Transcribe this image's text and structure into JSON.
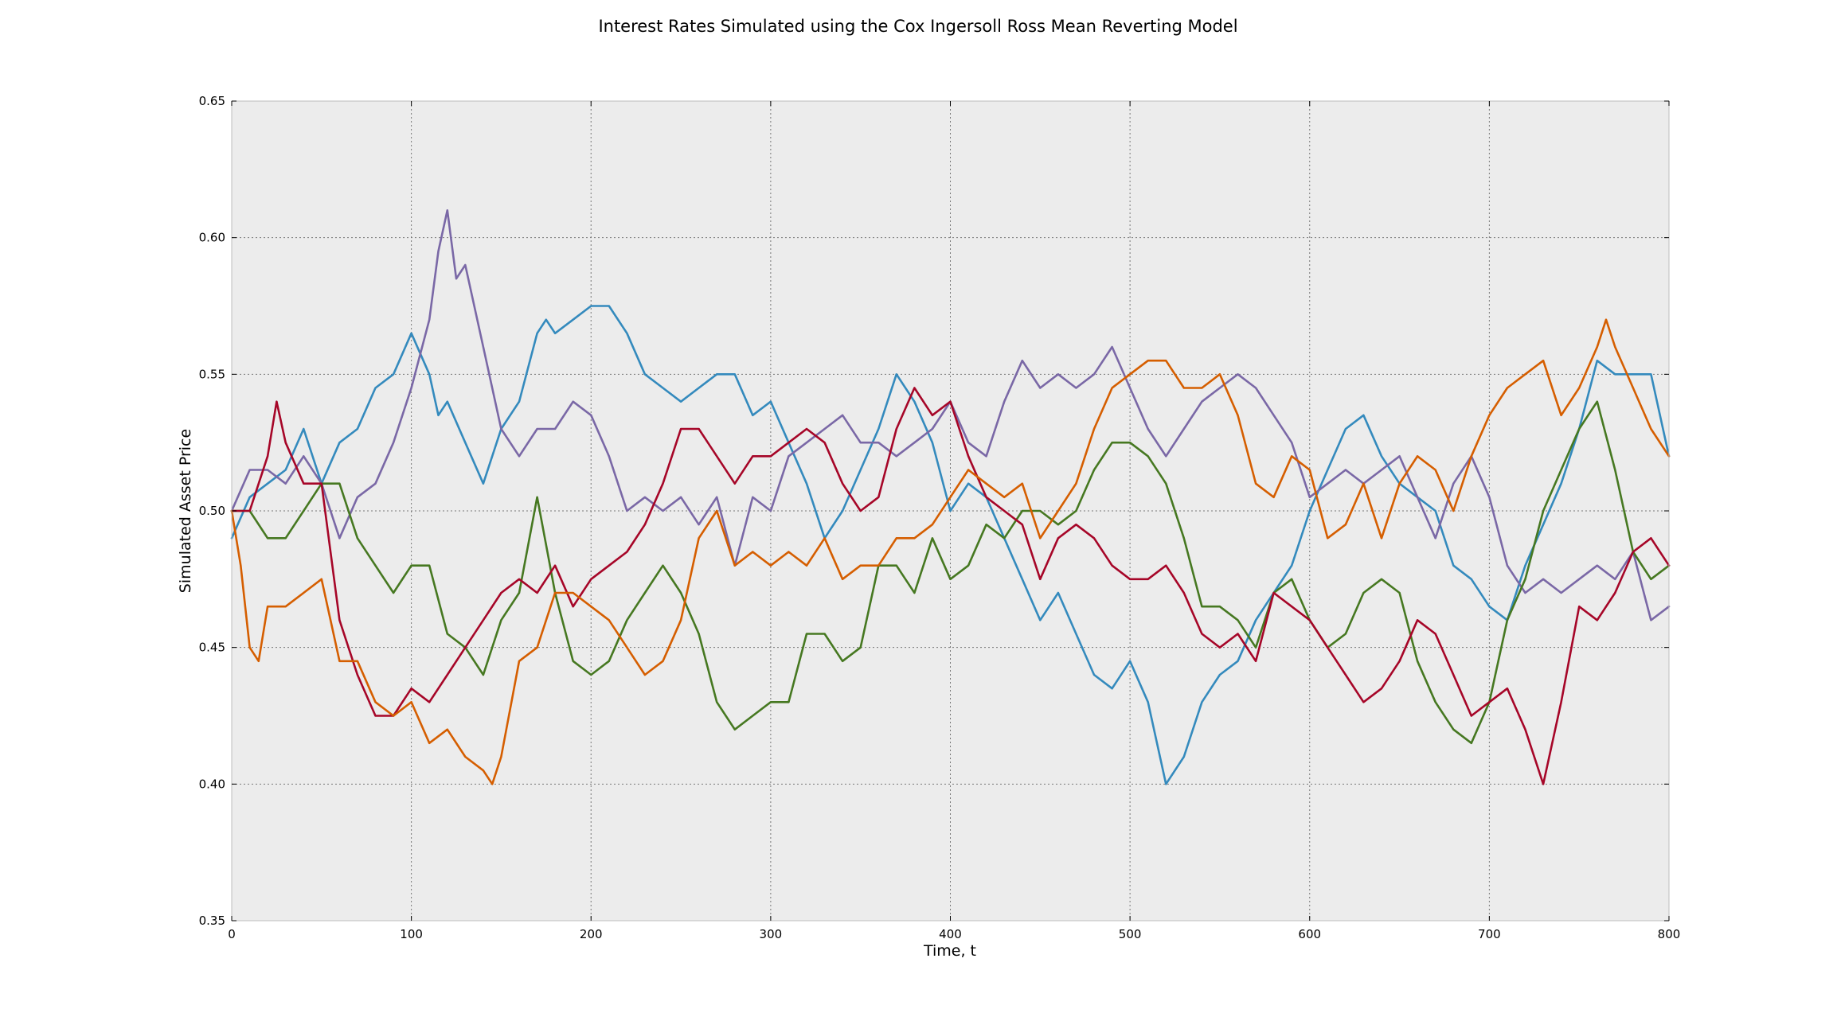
{
  "chart_data": {
    "type": "line",
    "title": "Interest Rates Simulated using the Cox Ingersoll Ross Mean Reverting Model",
    "xlabel": "Time, t",
    "ylabel": "Simulated Asset Price",
    "xlim": [
      0,
      800
    ],
    "ylim": [
      0.35,
      0.65
    ],
    "xticks": [
      0,
      100,
      200,
      300,
      400,
      500,
      600,
      700,
      800
    ],
    "yticks": [
      0.35,
      0.4,
      0.45,
      0.5,
      0.55,
      0.6,
      0.65
    ],
    "xtick_labels": [
      "0",
      "100",
      "200",
      "300",
      "400",
      "500",
      "600",
      "700",
      "800"
    ],
    "ytick_labels": [
      "0.35",
      "0.40",
      "0.45",
      "0.50",
      "0.55",
      "0.60",
      "0.65"
    ],
    "grid": true,
    "legend": false,
    "background": "#ececec",
    "series": [
      {
        "color": "#348abd",
        "x": [
          0,
          10,
          20,
          30,
          40,
          50,
          60,
          70,
          80,
          90,
          100,
          110,
          115,
          120,
          130,
          140,
          150,
          160,
          170,
          175,
          180,
          190,
          200,
          210,
          220,
          230,
          240,
          250,
          260,
          270,
          280,
          290,
          300,
          310,
          320,
          330,
          340,
          350,
          360,
          370,
          380,
          390,
          400,
          410,
          420,
          430,
          440,
          450,
          460,
          470,
          480,
          490,
          500,
          510,
          515,
          520,
          530,
          540,
          550,
          560,
          570,
          580,
          590,
          600,
          610,
          620,
          630,
          640,
          650,
          660,
          670,
          680,
          690,
          700,
          710,
          720,
          730,
          740,
          750,
          760,
          770,
          780,
          790,
          800
        ],
        "y": [
          0.49,
          0.505,
          0.51,
          0.515,
          0.53,
          0.51,
          0.525,
          0.53,
          0.545,
          0.55,
          0.565,
          0.55,
          0.535,
          0.54,
          0.525,
          0.51,
          0.53,
          0.54,
          0.565,
          0.57,
          0.565,
          0.57,
          0.575,
          0.575,
          0.565,
          0.55,
          0.545,
          0.54,
          0.545,
          0.55,
          0.55,
          0.535,
          0.54,
          0.525,
          0.51,
          0.49,
          0.5,
          0.515,
          0.53,
          0.55,
          0.54,
          0.525,
          0.5,
          0.51,
          0.505,
          0.49,
          0.475,
          0.46,
          0.47,
          0.455,
          0.44,
          0.435,
          0.445,
          0.43,
          0.415,
          0.4,
          0.41,
          0.43,
          0.44,
          0.445,
          0.46,
          0.47,
          0.48,
          0.5,
          0.515,
          0.53,
          0.535,
          0.52,
          0.51,
          0.505,
          0.5,
          0.48,
          0.475,
          0.465,
          0.46,
          0.48,
          0.495,
          0.51,
          0.53,
          0.555,
          0.55,
          0.55,
          0.55,
          0.52
        ]
      },
      {
        "color": "#7a68a6",
        "x": [
          0,
          10,
          20,
          30,
          40,
          50,
          60,
          70,
          80,
          90,
          100,
          110,
          115,
          120,
          125,
          130,
          140,
          150,
          160,
          170,
          180,
          190,
          200,
          210,
          220,
          230,
          240,
          250,
          260,
          270,
          280,
          290,
          300,
          310,
          320,
          330,
          340,
          350,
          360,
          370,
          380,
          390,
          400,
          410,
          420,
          430,
          440,
          450,
          460,
          470,
          480,
          490,
          500,
          510,
          520,
          530,
          540,
          550,
          560,
          570,
          580,
          590,
          600,
          610,
          620,
          630,
          640,
          650,
          660,
          670,
          680,
          690,
          700,
          710,
          720,
          730,
          740,
          750,
          760,
          770,
          780,
          790,
          800
        ],
        "y": [
          0.5,
          0.515,
          0.515,
          0.51,
          0.52,
          0.51,
          0.49,
          0.505,
          0.51,
          0.525,
          0.545,
          0.57,
          0.595,
          0.61,
          0.585,
          0.59,
          0.56,
          0.53,
          0.52,
          0.53,
          0.53,
          0.54,
          0.535,
          0.52,
          0.5,
          0.505,
          0.5,
          0.505,
          0.495,
          0.505,
          0.48,
          0.505,
          0.5,
          0.52,
          0.525,
          0.53,
          0.535,
          0.525,
          0.525,
          0.52,
          0.525,
          0.53,
          0.54,
          0.525,
          0.52,
          0.54,
          0.555,
          0.545,
          0.55,
          0.545,
          0.55,
          0.56,
          0.545,
          0.53,
          0.52,
          0.53,
          0.54,
          0.545,
          0.55,
          0.545,
          0.535,
          0.525,
          0.505,
          0.51,
          0.515,
          0.51,
          0.515,
          0.52,
          0.505,
          0.49,
          0.51,
          0.52,
          0.505,
          0.48,
          0.47,
          0.475,
          0.47,
          0.475,
          0.48,
          0.475,
          0.485,
          0.46,
          0.465
        ]
      },
      {
        "color": "#467821",
        "x": [
          0,
          10,
          20,
          30,
          40,
          50,
          60,
          70,
          80,
          90,
          100,
          110,
          120,
          130,
          140,
          150,
          160,
          170,
          180,
          190,
          200,
          210,
          220,
          230,
          240,
          250,
          260,
          270,
          280,
          290,
          300,
          310,
          320,
          330,
          340,
          350,
          360,
          370,
          380,
          390,
          400,
          410,
          420,
          430,
          440,
          450,
          460,
          470,
          480,
          490,
          500,
          510,
          520,
          530,
          540,
          550,
          560,
          570,
          580,
          590,
          600,
          610,
          620,
          630,
          640,
          650,
          660,
          670,
          680,
          690,
          700,
          710,
          720,
          730,
          740,
          750,
          760,
          770,
          780,
          790,
          800
        ],
        "y": [
          0.5,
          0.5,
          0.49,
          0.49,
          0.5,
          0.51,
          0.51,
          0.49,
          0.48,
          0.47,
          0.48,
          0.48,
          0.455,
          0.45,
          0.44,
          0.46,
          0.47,
          0.505,
          0.47,
          0.445,
          0.44,
          0.445,
          0.46,
          0.47,
          0.48,
          0.47,
          0.455,
          0.43,
          0.42,
          0.425,
          0.43,
          0.43,
          0.455,
          0.455,
          0.445,
          0.45,
          0.48,
          0.48,
          0.47,
          0.49,
          0.475,
          0.48,
          0.495,
          0.49,
          0.5,
          0.5,
          0.495,
          0.5,
          0.515,
          0.525,
          0.525,
          0.52,
          0.51,
          0.49,
          0.465,
          0.465,
          0.46,
          0.45,
          0.47,
          0.475,
          0.46,
          0.45,
          0.455,
          0.47,
          0.475,
          0.47,
          0.445,
          0.43,
          0.42,
          0.415,
          0.43,
          0.46,
          0.475,
          0.5,
          0.515,
          0.53,
          0.54,
          0.515,
          0.485,
          0.475,
          0.48
        ]
      },
      {
        "color": "#a60628",
        "x": [
          0,
          10,
          20,
          25,
          30,
          40,
          50,
          60,
          70,
          80,
          90,
          100,
          110,
          120,
          130,
          140,
          150,
          160,
          170,
          180,
          190,
          200,
          210,
          220,
          230,
          240,
          250,
          260,
          270,
          280,
          290,
          300,
          310,
          320,
          330,
          340,
          350,
          360,
          370,
          380,
          390,
          400,
          410,
          420,
          430,
          440,
          450,
          460,
          470,
          480,
          490,
          500,
          510,
          520,
          530,
          540,
          550,
          560,
          570,
          580,
          590,
          600,
          610,
          620,
          630,
          640,
          650,
          660,
          670,
          680,
          690,
          700,
          710,
          720,
          730,
          740,
          750,
          760,
          770,
          780,
          790,
          800
        ],
        "y": [
          0.5,
          0.5,
          0.52,
          0.54,
          0.525,
          0.51,
          0.51,
          0.46,
          0.44,
          0.425,
          0.425,
          0.435,
          0.43,
          0.44,
          0.45,
          0.46,
          0.47,
          0.475,
          0.47,
          0.48,
          0.465,
          0.475,
          0.48,
          0.485,
          0.495,
          0.51,
          0.53,
          0.53,
          0.52,
          0.51,
          0.52,
          0.52,
          0.525,
          0.53,
          0.525,
          0.51,
          0.5,
          0.505,
          0.53,
          0.545,
          0.535,
          0.54,
          0.52,
          0.505,
          0.5,
          0.495,
          0.475,
          0.49,
          0.495,
          0.49,
          0.48,
          0.475,
          0.475,
          0.48,
          0.47,
          0.455,
          0.45,
          0.455,
          0.445,
          0.47,
          0.465,
          0.46,
          0.45,
          0.44,
          0.43,
          0.435,
          0.445,
          0.46,
          0.455,
          0.44,
          0.425,
          0.43,
          0.435,
          0.42,
          0.4,
          0.43,
          0.465,
          0.46,
          0.47,
          0.485,
          0.49,
          0.48
        ]
      },
      {
        "color": "#d55e00",
        "x": [
          0,
          5,
          10,
          15,
          20,
          30,
          40,
          50,
          60,
          70,
          80,
          90,
          100,
          110,
          120,
          130,
          140,
          145,
          150,
          160,
          170,
          180,
          190,
          200,
          210,
          220,
          230,
          240,
          250,
          260,
          270,
          280,
          290,
          300,
          310,
          320,
          330,
          340,
          350,
          360,
          370,
          380,
          390,
          400,
          410,
          420,
          430,
          440,
          450,
          460,
          470,
          480,
          490,
          500,
          510,
          520,
          530,
          540,
          550,
          560,
          570,
          580,
          590,
          600,
          610,
          620,
          630,
          640,
          650,
          660,
          670,
          680,
          690,
          700,
          710,
          720,
          730,
          740,
          750,
          760,
          765,
          770,
          780,
          790,
          800
        ],
        "y": [
          0.5,
          0.48,
          0.45,
          0.445,
          0.465,
          0.465,
          0.47,
          0.475,
          0.445,
          0.445,
          0.43,
          0.425,
          0.43,
          0.415,
          0.42,
          0.41,
          0.405,
          0.4,
          0.41,
          0.445,
          0.45,
          0.47,
          0.47,
          0.465,
          0.46,
          0.45,
          0.44,
          0.445,
          0.46,
          0.49,
          0.5,
          0.48,
          0.485,
          0.48,
          0.485,
          0.48,
          0.49,
          0.475,
          0.48,
          0.48,
          0.49,
          0.49,
          0.495,
          0.505,
          0.515,
          0.51,
          0.505,
          0.51,
          0.49,
          0.5,
          0.51,
          0.53,
          0.545,
          0.55,
          0.555,
          0.555,
          0.545,
          0.545,
          0.55,
          0.535,
          0.51,
          0.505,
          0.52,
          0.515,
          0.49,
          0.495,
          0.51,
          0.49,
          0.51,
          0.52,
          0.515,
          0.5,
          0.52,
          0.535,
          0.545,
          0.55,
          0.555,
          0.535,
          0.545,
          0.56,
          0.57,
          0.56,
          0.545,
          0.53,
          0.52
        ]
      }
    ]
  }
}
